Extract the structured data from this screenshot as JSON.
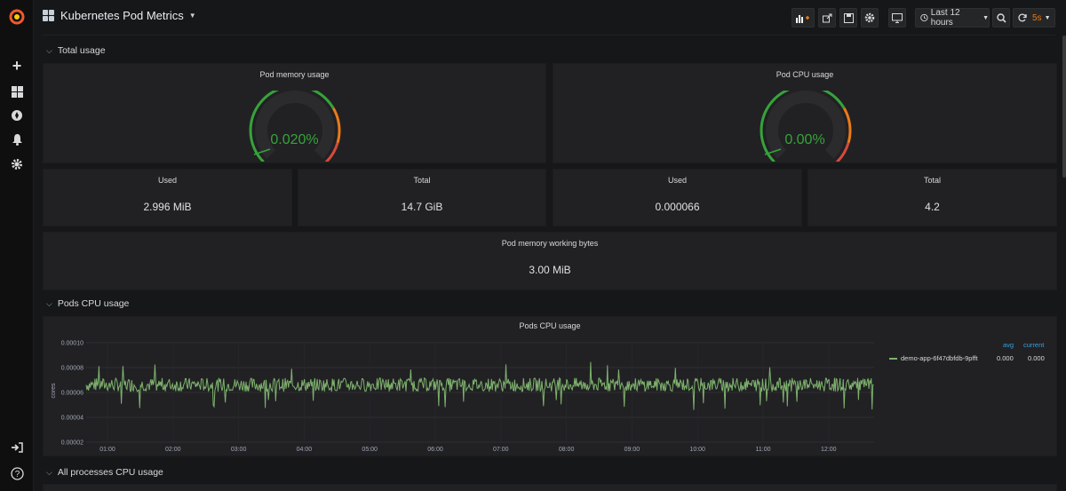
{
  "header": {
    "title": "Kubernetes Pod Metrics",
    "time_range": "Last 12 hours",
    "refresh_interval": "5s"
  },
  "sidebar": {
    "icons": [
      "grafana-logo-icon",
      "plus-icon",
      "dashboards-icon",
      "explore-icon",
      "alerting-icon",
      "settings-icon",
      "sign-in-icon",
      "help-icon"
    ]
  },
  "rows": {
    "total_usage": "Total usage",
    "pods_cpu_usage": "Pods CPU usage",
    "all_processes": "All processes CPU usage"
  },
  "gauges": {
    "memory": {
      "title": "Pod memory usage",
      "value": "0.020%",
      "level": 0.0002
    },
    "cpu": {
      "title": "Pod CPU usage",
      "value": "0.00%",
      "level": 0.0
    }
  },
  "stats": {
    "mem_used": {
      "title": "Used",
      "value": "2.996 MiB"
    },
    "mem_total": {
      "title": "Total",
      "value": "14.7 GiB"
    },
    "cpu_used": {
      "title": "Used",
      "value": "0.000066"
    },
    "cpu_total": {
      "title": "Total",
      "value": "4.2"
    },
    "working_bytes": {
      "title": "Pod memory working bytes",
      "value": "3.00 MiB"
    }
  },
  "colors": {
    "accent_orange": "#eb7b18",
    "gauge_green": "#37a33a",
    "gauge_red": "#d44a3a",
    "series_green": "#7eb26d",
    "legend_blue": "#33a2e5"
  },
  "chart_data": {
    "type": "line",
    "title": "Pods CPU usage",
    "ylabel": "cores",
    "xlabel": "",
    "ylim": [
      2e-05,
      0.0001
    ],
    "yticks": [
      "0.00010",
      "0.00008",
      "0.00006",
      "0.00004",
      "0.00002"
    ],
    "xticks": [
      "01:00",
      "02:00",
      "03:00",
      "04:00",
      "05:00",
      "06:00",
      "07:00",
      "08:00",
      "09:00",
      "10:00",
      "11:00",
      "12:00"
    ],
    "legend": {
      "headers": [
        "avg",
        "current"
      ],
      "placement": "right"
    },
    "series": [
      {
        "name": "demo-app-6f47dbfdb-9pfft",
        "avg": "0.000",
        "current": "0.000",
        "baseline": 6.62e-05,
        "spread": 5.5e-06
      }
    ]
  }
}
